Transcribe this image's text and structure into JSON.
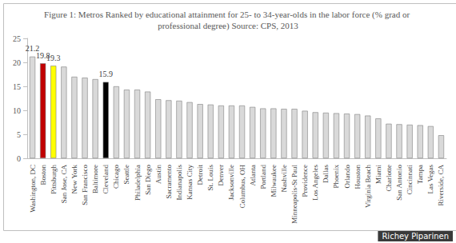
{
  "chart_data": {
    "type": "bar",
    "title": "Figure 1: Metros Ranked by educational attainment for 25- to 34-year-olds in the labor force (% grad or professional degree) Source: CPS, 2013",
    "categories": [
      "Washington, DC",
      "Boston",
      "Pittsburgh",
      "San Jose, CA",
      "New York",
      "San Francisco",
      "Baltimore",
      "Cleveland",
      "Chicago",
      "Seattle",
      "Philadelphia",
      "San Diego",
      "Austin",
      "Sacramento",
      "Indianapolis",
      "Kansas City",
      "Detroit",
      "St. Louis",
      "Denver",
      "Jacksonville",
      "Columbus, OH",
      "Atlanta",
      "Portland",
      "Milwaukee",
      "Nashville",
      "Minneapolis-St Paul",
      "Providence",
      "Los Angeles",
      "Dallas",
      "Phoenix",
      "Orlando",
      "Houston",
      "Virginia Beach",
      "Miami",
      "Charlotte",
      "San Antonio",
      "Cincinnati",
      "Tampa",
      "Las Vegas",
      "Riverside, CA"
    ],
    "values": [
      21.2,
      19.8,
      19.3,
      19.1,
      17.0,
      16.8,
      16.5,
      15.9,
      15.0,
      14.3,
      14.3,
      13.9,
      12.3,
      12.1,
      12.0,
      11.7,
      11.3,
      11.2,
      11.0,
      11.0,
      11.0,
      10.7,
      10.4,
      10.4,
      10.3,
      10.3,
      9.9,
      9.6,
      9.5,
      9.4,
      9.3,
      9.2,
      8.9,
      8.3,
      7.2,
      7.1,
      7.0,
      6.9,
      6.7,
      4.8
    ],
    "value_labels": [
      "21.2",
      "19.8",
      "19.3",
      null,
      null,
      null,
      null,
      "15.9",
      null,
      null,
      null,
      null,
      null,
      null,
      null,
      null,
      null,
      null,
      null,
      null,
      null,
      null,
      null,
      null,
      null,
      null,
      null,
      null,
      null,
      null,
      null,
      null,
      null,
      null,
      null,
      null,
      null,
      null,
      null,
      null
    ],
    "colors": [
      "#d9d9d9",
      "#c00000",
      "#ffff00",
      "#d9d9d9",
      "#d9d9d9",
      "#d9d9d9",
      "#d9d9d9",
      "#000000",
      "#d9d9d9",
      "#d9d9d9",
      "#d9d9d9",
      "#d9d9d9",
      "#d9d9d9",
      "#d9d9d9",
      "#d9d9d9",
      "#d9d9d9",
      "#d9d9d9",
      "#d9d9d9",
      "#d9d9d9",
      "#d9d9d9",
      "#d9d9d9",
      "#d9d9d9",
      "#d9d9d9",
      "#d9d9d9",
      "#d9d9d9",
      "#d9d9d9",
      "#d9d9d9",
      "#d9d9d9",
      "#d9d9d9",
      "#d9d9d9",
      "#d9d9d9",
      "#d9d9d9",
      "#d9d9d9",
      "#d9d9d9",
      "#d9d9d9",
      "#d9d9d9",
      "#d9d9d9",
      "#d9d9d9",
      "#d9d9d9",
      "#d9d9d9"
    ],
    "ylim": [
      0,
      25
    ],
    "yticks": [
      0,
      5,
      10,
      15,
      20,
      25
    ],
    "grid": false,
    "data_labels": true,
    "annotations": [
      "Richey Piparinen"
    ]
  }
}
